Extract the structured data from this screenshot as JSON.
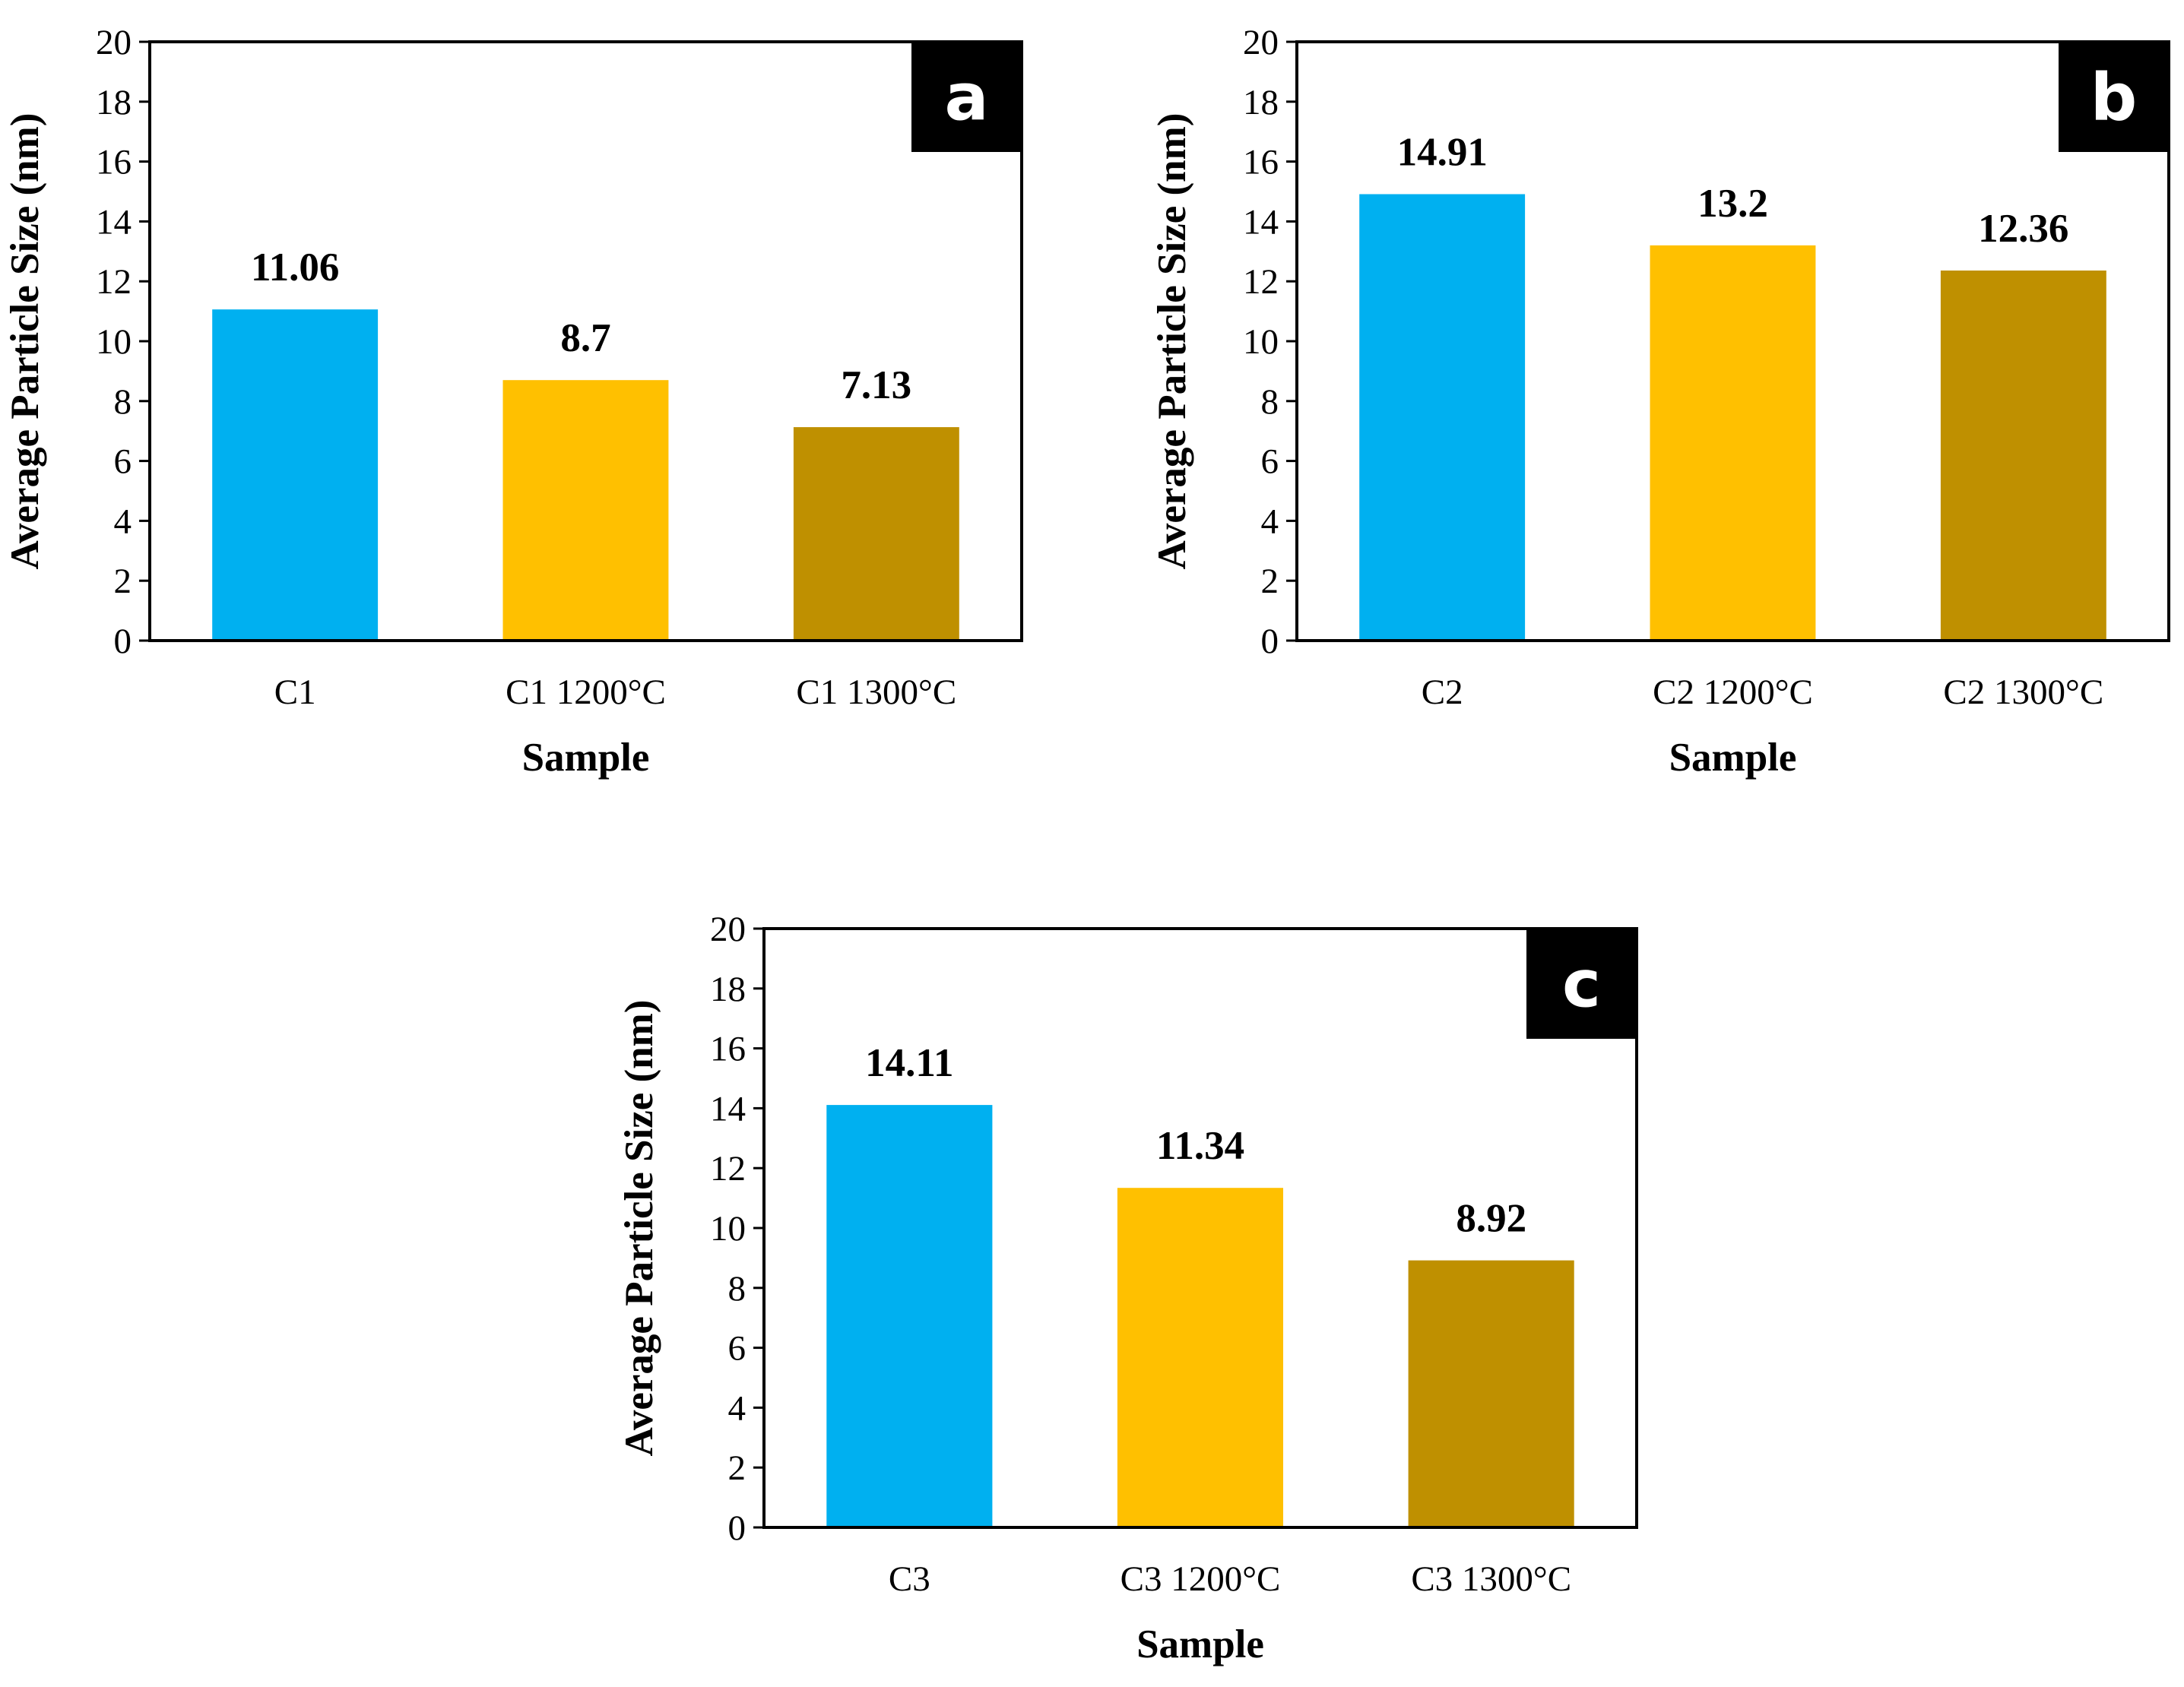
{
  "chart_data": [
    {
      "type": "bar",
      "panel_label": "a",
      "categories": [
        "C1",
        "C1 1200°C",
        "C1 1300°C"
      ],
      "values": [
        11.06,
        8.7,
        7.13
      ],
      "data_labels": [
        "11.06",
        "8.7",
        "7.13"
      ],
      "colors": [
        "#00b0f0",
        "#ffc000",
        "#bf9000"
      ],
      "title": "",
      "xlabel": "Sample",
      "ylabel": "Average Particle Size (nm)",
      "ylim": [
        0,
        20
      ],
      "yticks": [
        0,
        2,
        4,
        6,
        8,
        10,
        12,
        14,
        16,
        18,
        20
      ],
      "grid": false,
      "legend": "none"
    },
    {
      "type": "bar",
      "panel_label": "b",
      "categories": [
        "C2",
        "C2 1200°C",
        "C2 1300°C"
      ],
      "values": [
        14.91,
        13.2,
        12.36
      ],
      "data_labels": [
        "14.91",
        "13.2",
        "12.36"
      ],
      "colors": [
        "#00b0f0",
        "#ffc000",
        "#bf9000"
      ],
      "title": "",
      "xlabel": "Sample",
      "ylabel": "Average Particle Size (nm)",
      "ylim": [
        0,
        20
      ],
      "yticks": [
        0,
        2,
        4,
        6,
        8,
        10,
        12,
        14,
        16,
        18,
        20
      ],
      "grid": false,
      "legend": "none"
    },
    {
      "type": "bar",
      "panel_label": "c",
      "categories": [
        "C3",
        "C3 1200°C",
        "C3 1300°C"
      ],
      "values": [
        14.11,
        11.34,
        8.92
      ],
      "data_labels": [
        "14.11",
        "11.34",
        "8.92"
      ],
      "colors": [
        "#00b0f0",
        "#ffc000",
        "#bf9000"
      ],
      "title": "",
      "xlabel": "Sample",
      "ylabel": "Average Particle Size (nm)",
      "ylim": [
        0,
        20
      ],
      "yticks": [
        0,
        2,
        4,
        6,
        8,
        10,
        12,
        14,
        16,
        18,
        20
      ],
      "grid": false,
      "legend": "none"
    }
  ]
}
